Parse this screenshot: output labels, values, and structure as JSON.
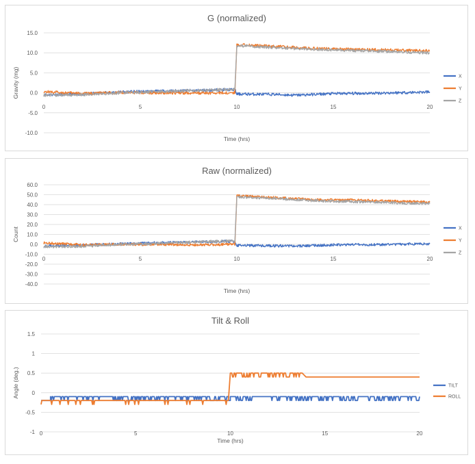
{
  "colors": {
    "x": "#4472c4",
    "y": "#ed7d31",
    "z": "#a5a5a5",
    "grid": "#d9d9d9"
  },
  "chart_data": [
    {
      "type": "line",
      "title": "G (normalized)",
      "xlabel": "Time (hrs)",
      "ylabel": "Gravity (mg)",
      "xlim": [
        0,
        20
      ],
      "ylim": [
        -10,
        15
      ],
      "x_ticks": [
        "0",
        "5",
        "10",
        "15",
        "20"
      ],
      "y_ticks": [
        "15.0",
        "10.0",
        "5.0",
        "0.0",
        "-5.0",
        "-10.0"
      ],
      "grid": true,
      "legend": "right",
      "series": [
        {
          "name": "X",
          "points": [
            [
              0,
              -0.5
            ],
            [
              2,
              -0.3
            ],
            [
              4,
              0.2
            ],
            [
              6,
              0.4
            ],
            [
              8,
              0.6
            ],
            [
              9.9,
              0.8
            ],
            [
              10,
              -0.3
            ],
            [
              12,
              -0.4
            ],
            [
              13,
              -0.6
            ],
            [
              15,
              -0.2
            ],
            [
              17,
              -0.1
            ],
            [
              20,
              0.2
            ]
          ]
        },
        {
          "name": "Y",
          "points": [
            [
              0,
              0.3
            ],
            [
              2,
              -0.2
            ],
            [
              4,
              0.1
            ],
            [
              6,
              0.0
            ],
            [
              8,
              -0.1
            ],
            [
              9.9,
              0.0
            ],
            [
              10,
              12.1
            ],
            [
              12,
              11.6
            ],
            [
              14,
              11.1
            ],
            [
              16,
              10.9
            ],
            [
              18,
              10.7
            ],
            [
              20,
              10.5
            ]
          ]
        },
        {
          "name": "Z",
          "points": [
            [
              0,
              -0.6
            ],
            [
              2,
              -0.5
            ],
            [
              4,
              0.0
            ],
            [
              6,
              0.3
            ],
            [
              8,
              0.6
            ],
            [
              9.9,
              0.9
            ],
            [
              10,
              11.8
            ],
            [
              12,
              11.3
            ],
            [
              14,
              10.9
            ],
            [
              16,
              10.6
            ],
            [
              18,
              10.3
            ],
            [
              20,
              10.0
            ]
          ]
        }
      ]
    },
    {
      "type": "line",
      "title": "Raw (normalized)",
      "xlabel": "Time (hrs)",
      "ylabel": "Count",
      "xlim": [
        0,
        20
      ],
      "ylim": [
        -40,
        60
      ],
      "x_ticks": [
        "0",
        "5",
        "10",
        "15",
        "20"
      ],
      "y_ticks": [
        "60.0",
        "50.0",
        "40.0",
        "30.0",
        "20.0",
        "10.0",
        "0.0",
        "-10.0",
        "-20.0",
        "-30.0",
        "-40.0"
      ],
      "grid": true,
      "legend": "right",
      "series": [
        {
          "name": "X",
          "points": [
            [
              0,
              -1.5
            ],
            [
              2,
              -1.0
            ],
            [
              4,
              0.5
            ],
            [
              6,
              1.5
            ],
            [
              8,
              2.5
            ],
            [
              9.9,
              3.0
            ],
            [
              10,
              -1.0
            ],
            [
              12,
              -1.5
            ],
            [
              13,
              -2.0
            ],
            [
              15,
              -0.5
            ],
            [
              17,
              -0.3
            ],
            [
              20,
              0.5
            ]
          ]
        },
        {
          "name": "Y",
          "points": [
            [
              0,
              1.5
            ],
            [
              2,
              -0.5
            ],
            [
              4,
              0.0
            ],
            [
              6,
              0.0
            ],
            [
              8,
              -0.5
            ],
            [
              9.9,
              0.0
            ],
            [
              10,
              49.0
            ],
            [
              12,
              47.0
            ],
            [
              14,
              45.0
            ],
            [
              16,
              44.5
            ],
            [
              18,
              43.5
            ],
            [
              20,
              42.5
            ]
          ]
        },
        {
          "name": "Z",
          "points": [
            [
              0,
              -2.5
            ],
            [
              2,
              -2.0
            ],
            [
              4,
              0.0
            ],
            [
              6,
              1.0
            ],
            [
              8,
              2.5
            ],
            [
              9.9,
              3.5
            ],
            [
              10,
              48.0
            ],
            [
              12,
              46.0
            ],
            [
              14,
              44.0
            ],
            [
              16,
              43.0
            ],
            [
              18,
              42.0
            ],
            [
              20,
              41.0
            ]
          ]
        }
      ]
    },
    {
      "type": "line",
      "title": "Tilt & Roll",
      "xlabel": "Time (hrs)",
      "ylabel": "Angle (deg.)",
      "xlim": [
        0,
        20
      ],
      "ylim": [
        -1,
        1.5
      ],
      "x_ticks": [
        "0",
        "5",
        "10",
        "15",
        "20"
      ],
      "y_ticks": [
        "1.5",
        "1",
        "0.5",
        "0",
        "-0.5",
        "-1"
      ],
      "grid": true,
      "legend": "right",
      "series": [
        {
          "name": "TILT",
          "points": [
            [
              0,
              -0.2
            ],
            [
              0.5,
              -0.2
            ],
            [
              0.5,
              -0.1
            ],
            [
              9.9,
              -0.1
            ],
            [
              9.9,
              -0.2
            ],
            [
              10,
              -0.2
            ],
            [
              10,
              -0.1
            ],
            [
              20,
              -0.1
            ]
          ]
        },
        {
          "name": "ROLL",
          "points": [
            [
              0,
              -0.2
            ],
            [
              9.9,
              -0.2
            ],
            [
              10,
              0.5
            ],
            [
              13.8,
              0.5
            ],
            [
              14,
              0.4
            ],
            [
              20,
              0.4
            ]
          ]
        }
      ]
    }
  ]
}
